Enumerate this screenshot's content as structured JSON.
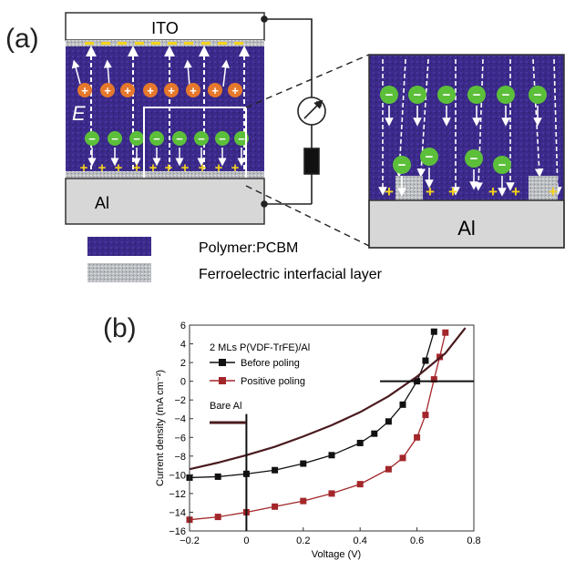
{
  "panel_a": {
    "label": "(a)",
    "top_electrode": "ITO",
    "bottom_electrode": "Al",
    "zoom_electrode": "Al",
    "field_label": "E",
    "plus_sign": "+",
    "minus_sign": "−",
    "legend": [
      {
        "label": "Polymer:PCBM",
        "swatch": "polymer",
        "color": "#3b2a8a"
      },
      {
        "label": "Ferroelectric interfacial layer",
        "swatch": "ferroelectric",
        "color": "#b9bcc0"
      }
    ],
    "colors": {
      "polymer": "#3b2a8a",
      "hole": "#e6782b",
      "electron": "#5cbf3a",
      "plus": "#f4d21c",
      "electrode": "#d7d7d7"
    }
  },
  "panel_b": {
    "label": "(b)",
    "annotation": "2 MLs P(VDF-TrFE)/Al",
    "bare_label": "Bare Al"
  },
  "chart_data": {
    "type": "line",
    "xlabel": "Voltage (V)",
    "ylabel": "Current density (mA cm⁻²)",
    "xlim": [
      -0.2,
      0.8
    ],
    "ylim": [
      -16,
      6
    ],
    "xticks": [
      "−0.2",
      "0",
      "0.2",
      "0.4",
      "0.6",
      "0.8"
    ],
    "yticks": [
      "6",
      "4",
      "2",
      "0",
      "−2",
      "−4",
      "−6",
      "−8",
      "−10",
      "−12",
      "−14",
      "−16"
    ],
    "legend_position": "top-left",
    "series": [
      {
        "name": "Before poling",
        "color": "#111111",
        "marker": "square",
        "x": [
          -0.2,
          -0.1,
          0.0,
          0.1,
          0.2,
          0.3,
          0.4,
          0.45,
          0.5,
          0.55,
          0.6,
          0.63,
          0.66
        ],
        "y": [
          -10.3,
          -10.2,
          -9.9,
          -9.5,
          -8.8,
          -7.9,
          -6.6,
          -5.6,
          -4.3,
          -2.5,
          0.0,
          2.2,
          5.3
        ]
      },
      {
        "name": "Positive poling",
        "color": "#a3262a",
        "marker": "square",
        "x": [
          -0.2,
          -0.1,
          0.0,
          0.1,
          0.2,
          0.3,
          0.4,
          0.5,
          0.55,
          0.6,
          0.63,
          0.66,
          0.68,
          0.7
        ],
        "y": [
          -14.8,
          -14.5,
          -14.0,
          -13.4,
          -12.8,
          -12.0,
          -11.0,
          -9.4,
          -8.2,
          -6.0,
          -3.6,
          0.2,
          2.6,
          5.2
        ]
      },
      {
        "name": "Bare Al",
        "color": "#4a1a1e",
        "marker": "none",
        "x": [
          -0.2,
          -0.1,
          0.0,
          0.1,
          0.2,
          0.3,
          0.4,
          0.5,
          0.6,
          0.7,
          0.77
        ],
        "y": [
          -9.4,
          -8.7,
          -7.9,
          -7.0,
          -5.9,
          -4.7,
          -3.3,
          -1.6,
          0.5,
          3.0,
          5.7
        ]
      }
    ]
  }
}
